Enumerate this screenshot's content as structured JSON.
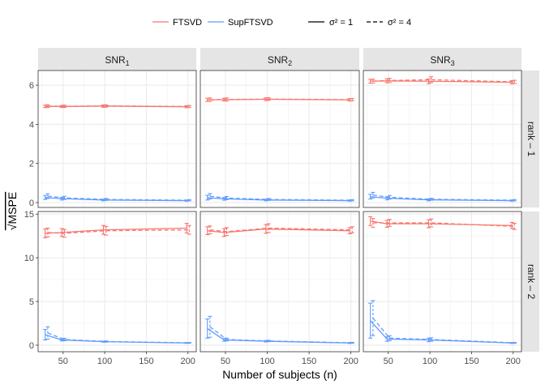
{
  "chart_data": {
    "type": "line",
    "xlabel": "Number of subjects (n)",
    "ylabel": "√MSPE",
    "x_values": [
      30,
      50,
      100,
      200
    ],
    "x_ticks": [
      50,
      100,
      150,
      200
    ],
    "xlim": [
      20,
      210
    ],
    "col_facets": [
      {
        "label": "SNR",
        "sub": "1"
      },
      {
        "label": "SNR",
        "sub": "2"
      },
      {
        "label": "SNR",
        "sub": "3"
      }
    ],
    "row_facets": [
      {
        "label": "rank – 1",
        "ylim": [
          -0.25,
          6.75
        ],
        "y_ticks": [
          0,
          2,
          4,
          6
        ]
      },
      {
        "label": "rank – 2",
        "ylim": [
          -0.75,
          15.3
        ],
        "y_ticks": [
          0,
          5,
          10,
          15
        ]
      }
    ],
    "legend": {
      "methods": [
        {
          "name": "FTSVD",
          "color": "#F8766D"
        },
        {
          "name": "SupFTSVD",
          "color": "#619CFF"
        }
      ],
      "noise": [
        {
          "name": "σ² = 1",
          "dash": "solid"
        },
        {
          "name": "σ² = 4",
          "dash": "dashed"
        }
      ]
    },
    "panels": [
      {
        "row": 0,
        "col": 0,
        "series": [
          {
            "method": "FTSVD",
            "noise": "σ² = 1",
            "y": [
              4.92,
              4.91,
              4.93,
              4.9
            ],
            "err": [
              0.06,
              0.05,
              0.06,
              0.05
            ]
          },
          {
            "method": "FTSVD",
            "noise": "σ² = 4",
            "y": [
              4.93,
              4.92,
              4.94,
              4.91
            ],
            "err": [
              0.07,
              0.06,
              0.06,
              0.05
            ]
          },
          {
            "method": "SupFTSVD",
            "noise": "σ² = 1",
            "y": [
              0.26,
              0.2,
              0.13,
              0.1
            ],
            "err": [
              0.1,
              0.07,
              0.04,
              0.03
            ]
          },
          {
            "method": "SupFTSVD",
            "noise": "σ² = 4",
            "y": [
              0.33,
              0.24,
              0.16,
              0.12
            ],
            "err": [
              0.12,
              0.08,
              0.05,
              0.03
            ]
          }
        ]
      },
      {
        "row": 0,
        "col": 1,
        "series": [
          {
            "method": "FTSVD",
            "noise": "σ² = 1",
            "y": [
              5.25,
              5.26,
              5.28,
              5.25
            ],
            "err": [
              0.08,
              0.07,
              0.07,
              0.06
            ]
          },
          {
            "method": "FTSVD",
            "noise": "σ² = 4",
            "y": [
              5.26,
              5.27,
              5.29,
              5.26
            ],
            "err": [
              0.09,
              0.08,
              0.07,
              0.06
            ]
          },
          {
            "method": "SupFTSVD",
            "noise": "σ² = 1",
            "y": [
              0.25,
              0.19,
              0.13,
              0.1
            ],
            "err": [
              0.12,
              0.07,
              0.04,
              0.03
            ]
          },
          {
            "method": "SupFTSVD",
            "noise": "σ² = 4",
            "y": [
              0.32,
              0.23,
              0.16,
              0.12
            ],
            "err": [
              0.14,
              0.08,
              0.05,
              0.03
            ]
          }
        ]
      },
      {
        "row": 0,
        "col": 2,
        "series": [
          {
            "method": "FTSVD",
            "noise": "σ² = 1",
            "y": [
              6.2,
              6.22,
              6.2,
              6.15
            ],
            "err": [
              0.1,
              0.1,
              0.12,
              0.08
            ]
          },
          {
            "method": "FTSVD",
            "noise": "σ² = 4",
            "y": [
              6.21,
              6.24,
              6.28,
              6.17
            ],
            "err": [
              0.1,
              0.11,
              0.15,
              0.08
            ]
          },
          {
            "method": "SupFTSVD",
            "noise": "σ² = 1",
            "y": [
              0.3,
              0.22,
              0.14,
              0.1
            ],
            "err": [
              0.12,
              0.08,
              0.05,
              0.03
            ]
          },
          {
            "method": "SupFTSVD",
            "noise": "σ² = 4",
            "y": [
              0.38,
              0.27,
              0.17,
              0.12
            ],
            "err": [
              0.14,
              0.09,
              0.05,
              0.03
            ]
          }
        ]
      },
      {
        "row": 1,
        "col": 0,
        "series": [
          {
            "method": "FTSVD",
            "noise": "σ² = 1",
            "y": [
              12.8,
              12.9,
              13.2,
              13.4
            ],
            "err": [
              0.5,
              0.45,
              0.5,
              0.55
            ]
          },
          {
            "method": "FTSVD",
            "noise": "σ² = 4",
            "y": [
              12.9,
              12.8,
              13.1,
              13.2
            ],
            "err": [
              0.5,
              0.45,
              0.5,
              0.5
            ]
          },
          {
            "method": "SupFTSVD",
            "noise": "σ² = 1",
            "y": [
              1.2,
              0.6,
              0.4,
              0.25
            ],
            "err": [
              0.6,
              0.12,
              0.06,
              0.04
            ]
          },
          {
            "method": "SupFTSVD",
            "noise": "σ² = 4",
            "y": [
              1.4,
              0.65,
              0.42,
              0.27
            ],
            "err": [
              0.7,
              0.14,
              0.07,
              0.04
            ]
          }
        ]
      },
      {
        "row": 1,
        "col": 1,
        "series": [
          {
            "method": "FTSVD",
            "noise": "σ² = 1",
            "y": [
              13.1,
              12.9,
              13.3,
              13.1
            ],
            "err": [
              0.45,
              0.45,
              0.5,
              0.35
            ]
          },
          {
            "method": "FTSVD",
            "noise": "σ² = 4",
            "y": [
              13.2,
              13.0,
              13.4,
              13.2
            ],
            "err": [
              0.45,
              0.45,
              0.5,
              0.35
            ]
          },
          {
            "method": "SupFTSVD",
            "noise": "σ² = 1",
            "y": [
              1.9,
              0.6,
              0.45,
              0.25
            ],
            "err": [
              1.1,
              0.15,
              0.08,
              0.05
            ]
          },
          {
            "method": "SupFTSVD",
            "noise": "σ² = 4",
            "y": [
              2.1,
              0.65,
              0.48,
              0.27
            ],
            "err": [
              1.2,
              0.16,
              0.08,
              0.05
            ]
          }
        ]
      },
      {
        "row": 1,
        "col": 2,
        "series": [
          {
            "method": "FTSVD",
            "noise": "σ² = 1",
            "y": [
              14.2,
              13.9,
              13.9,
              13.7
            ],
            "err": [
              0.5,
              0.4,
              0.45,
              0.35
            ]
          },
          {
            "method": "FTSVD",
            "noise": "σ² = 4",
            "y": [
              14.0,
              14.0,
              14.0,
              13.6
            ],
            "err": [
              0.5,
              0.4,
              0.45,
              0.35
            ]
          },
          {
            "method": "SupFTSVD",
            "noise": "σ² = 1",
            "y": [
              2.8,
              0.7,
              0.6,
              0.25
            ],
            "err": [
              2.0,
              0.25,
              0.2,
              0.05
            ]
          },
          {
            "method": "SupFTSVD",
            "noise": "σ² = 4",
            "y": [
              3.1,
              0.8,
              0.65,
              0.27
            ],
            "err": [
              2.0,
              0.28,
              0.2,
              0.05
            ]
          }
        ]
      }
    ]
  }
}
